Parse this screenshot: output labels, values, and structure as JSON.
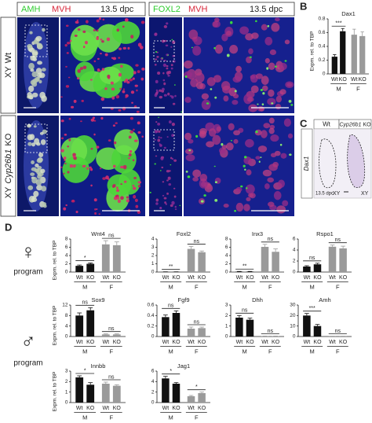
{
  "panels": {
    "b": "B",
    "c": "C",
    "d": "D"
  },
  "panel_a": {
    "left_header": {
      "marker1": "AMH",
      "marker2": "MVH",
      "stage": "13.5 dpc"
    },
    "right_header": {
      "marker1": "FOXL2",
      "marker2": "MVH",
      "stage": "13.5 dpc"
    },
    "rows": [
      {
        "prefix": "XY",
        "suffix": "Wt"
      },
      {
        "prefix": "XY",
        "gene": "Cyp26b1",
        "suffix": "KO"
      }
    ]
  },
  "panel_c": {
    "columns": [
      "Wt",
      {
        "gene": "Cyp26b1",
        "suffix": "KO"
      }
    ],
    "gene": "Dax1",
    "stage": "13.5 dpc",
    "genotype_labels": [
      "XY",
      "XY"
    ]
  },
  "panel_d": {
    "female_symbol": "♀",
    "male_symbol": "♂",
    "program_labels": [
      "program",
      "program"
    ]
  },
  "chart_data": [
    {
      "type": "bar",
      "title": "Dax1",
      "ylabel": "Expm. rel. to TBP",
      "categories": [
        "Wt",
        "KO",
        "Wt",
        "KO"
      ],
      "groups": [
        "M",
        "F"
      ],
      "values": [
        0.25,
        0.62,
        0.57,
        0.55
      ],
      "errors": [
        0.03,
        0.04,
        0.08,
        0.06
      ],
      "colors": [
        "#111111",
        "#111111",
        "#9a9a9a",
        "#9a9a9a"
      ],
      "ylim": [
        0,
        0.8
      ],
      "yticks": [
        0,
        0.2,
        0.4,
        0.6,
        0.8
      ],
      "significance": [
        "***",
        null
      ]
    },
    {
      "type": "bar",
      "title": "Wnt4",
      "ylabel": "Expm. rel. to TBP",
      "categories": [
        "Wt",
        "KO",
        "Wt",
        "KO"
      ],
      "groups": [
        "M",
        "F"
      ],
      "values": [
        1.5,
        2.0,
        6.7,
        6.5
      ],
      "errors": [
        0.2,
        0.2,
        0.9,
        0.8
      ],
      "colors": [
        "#111111",
        "#111111",
        "#9a9a9a",
        "#9a9a9a"
      ],
      "ylim": [
        0,
        8
      ],
      "yticks": [
        0,
        2,
        4,
        6,
        8
      ],
      "significance": [
        "*",
        "ns"
      ]
    },
    {
      "type": "bar",
      "title": "Foxl2",
      "categories": [
        "Wt",
        "KO",
        "Wt",
        "KO"
      ],
      "groups": [
        "M",
        "F"
      ],
      "values": [
        0.02,
        0.02,
        2.8,
        2.4
      ],
      "errors": [
        0.01,
        0.01,
        0.3,
        0.15
      ],
      "colors": [
        "#111111",
        "#111111",
        "#9a9a9a",
        "#9a9a9a"
      ],
      "ylim": [
        0,
        4
      ],
      "yticks": [
        0,
        1,
        2,
        3,
        4
      ],
      "significance": [
        "**",
        "ns"
      ]
    },
    {
      "type": "bar",
      "title": "Inx3",
      "categories": [
        "Wt",
        "KO",
        "Wt",
        "KO"
      ],
      "groups": [
        "M",
        "F"
      ],
      "values": [
        0.1,
        0.1,
        6.1,
        4.9
      ],
      "errors": [
        0.05,
        0.05,
        0.6,
        0.7
      ],
      "colors": [
        "#111111",
        "#111111",
        "#9a9a9a",
        "#9a9a9a"
      ],
      "ylim": [
        0,
        8
      ],
      "yticks": [
        0,
        2,
        4,
        6,
        8
      ],
      "significance": [
        "**",
        "ns"
      ]
    },
    {
      "type": "bar",
      "title": "Rspo1",
      "categories": [
        "Wt",
        "KO",
        "Wt",
        "KO"
      ],
      "groups": [
        "M",
        "F"
      ],
      "values": [
        1.0,
        1.4,
        4.6,
        4.3
      ],
      "errors": [
        0.15,
        0.2,
        0.3,
        0.4
      ],
      "colors": [
        "#111111",
        "#111111",
        "#9a9a9a",
        "#9a9a9a"
      ],
      "ylim": [
        0,
        6
      ],
      "yticks": [
        0,
        2,
        4,
        6
      ],
      "significance": [
        "ns",
        "ns"
      ]
    },
    {
      "type": "bar",
      "title": "Sox9",
      "ylabel": "Expm. rel. to TBP",
      "categories": [
        "Wt",
        "KO",
        "Wt",
        "KO"
      ],
      "groups": [
        "M",
        "F"
      ],
      "values": [
        8,
        10,
        0.8,
        0.8
      ],
      "errors": [
        1.0,
        1.0,
        0.2,
        0.2
      ],
      "colors": [
        "#111111",
        "#111111",
        "#9a9a9a",
        "#9a9a9a"
      ],
      "ylim": [
        0,
        12
      ],
      "yticks": [
        0,
        4,
        8,
        12
      ],
      "significance": [
        "ns",
        "ns"
      ]
    },
    {
      "type": "bar",
      "title": "Fgf9",
      "categories": [
        "Wt",
        "KO",
        "Wt",
        "KO"
      ],
      "groups": [
        "M",
        "F"
      ],
      "values": [
        0.37,
        0.45,
        0.15,
        0.16
      ],
      "errors": [
        0.04,
        0.04,
        0.03,
        0.02
      ],
      "colors": [
        "#111111",
        "#111111",
        "#9a9a9a",
        "#9a9a9a"
      ],
      "ylim": [
        0,
        0.6
      ],
      "yticks": [
        0,
        0.2,
        0.4,
        0.6
      ],
      "significance": [
        "ns",
        "ns"
      ]
    },
    {
      "type": "bar",
      "title": "Dhh",
      "categories": [
        "Wt",
        "KO",
        "Wt",
        "KO"
      ],
      "groups": [
        "M",
        "F"
      ],
      "values": [
        1.8,
        1.6,
        0.03,
        0.03
      ],
      "errors": [
        0.2,
        0.15,
        0.01,
        0.01
      ],
      "colors": [
        "#111111",
        "#111111",
        "#9a9a9a",
        "#9a9a9a"
      ],
      "ylim": [
        0,
        3
      ],
      "yticks": [
        0,
        1,
        2,
        3
      ],
      "significance": [
        "ns",
        "ns"
      ]
    },
    {
      "type": "bar",
      "title": "Amh",
      "categories": [
        "Wt",
        "KO",
        "Wt",
        "KO"
      ],
      "groups": [
        "M",
        "F"
      ],
      "values": [
        20,
        10,
        0.2,
        0.2
      ],
      "errors": [
        2.0,
        1.5,
        0.1,
        0.1
      ],
      "colors": [
        "#111111",
        "#111111",
        "#9a9a9a",
        "#9a9a9a"
      ],
      "ylim": [
        0,
        30
      ],
      "yticks": [
        0,
        10,
        20,
        30
      ],
      "significance": [
        "***",
        "ns"
      ]
    },
    {
      "type": "bar",
      "title": "Innbb",
      "ylabel": "Expm. rel. to TBP",
      "categories": [
        "Wt",
        "KO",
        "Wt",
        "KO"
      ],
      "groups": [
        "M",
        "F"
      ],
      "values": [
        2.4,
        1.7,
        1.8,
        1.6
      ],
      "errors": [
        0.15,
        0.2,
        0.15,
        0.1
      ],
      "colors": [
        "#111111",
        "#111111",
        "#9a9a9a",
        "#9a9a9a"
      ],
      "ylim": [
        0,
        3
      ],
      "yticks": [
        0,
        1,
        2,
        3
      ],
      "significance": [
        "*",
        "ns"
      ]
    },
    {
      "type": "bar",
      "title": "Jag1",
      "categories": [
        "Wt",
        "KO",
        "Wt",
        "KO"
      ],
      "groups": [
        "M",
        "F"
      ],
      "values": [
        4.6,
        3.6,
        1.2,
        1.8
      ],
      "errors": [
        0.4,
        0.2,
        0.15,
        0.2
      ],
      "colors": [
        "#111111",
        "#111111",
        "#9a9a9a",
        "#9a9a9a"
      ],
      "ylim": [
        0,
        6
      ],
      "yticks": [
        0,
        2,
        4,
        6
      ],
      "significance": [
        "*",
        "*"
      ]
    }
  ]
}
